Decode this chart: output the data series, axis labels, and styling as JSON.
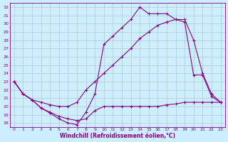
{
  "xlabel": "Windchill (Refroidissement éolien,°C)",
  "ylabel": "",
  "background_color": "#cceeff",
  "line_color": "#880088",
  "grid_color": "#aacccc",
  "xlim": [
    -0.5,
    23.5
  ],
  "ylim": [
    17.5,
    32.5
  ],
  "xticks": [
    0,
    1,
    2,
    3,
    4,
    5,
    6,
    7,
    8,
    9,
    10,
    11,
    12,
    13,
    14,
    15,
    16,
    17,
    18,
    19,
    20,
    21,
    22,
    23
  ],
  "yticks": [
    18,
    19,
    20,
    21,
    22,
    23,
    24,
    25,
    26,
    27,
    28,
    29,
    30,
    31,
    32
  ],
  "line1_x": [
    0,
    1,
    2,
    3,
    4,
    5,
    6,
    7,
    8,
    9,
    10,
    11,
    12,
    13,
    14,
    15,
    16,
    17,
    18,
    19,
    20,
    21,
    22,
    23
  ],
  "line1_y": [
    23.0,
    21.5,
    20.8,
    19.8,
    19.2,
    18.5,
    18.0,
    17.8,
    19.3,
    21.5,
    27.5,
    28.5,
    29.5,
    30.5,
    32.0,
    31.2,
    31.2,
    31.2,
    30.5,
    30.2,
    23.8,
    23.8,
    21.2,
    20.5
  ],
  "line2_x": [
    0,
    1,
    2,
    3,
    4,
    5,
    6,
    7,
    8,
    9,
    10,
    11,
    12,
    13,
    14,
    15,
    16,
    17,
    18,
    19,
    20,
    21,
    22,
    23
  ],
  "line2_y": [
    23.0,
    21.5,
    20.8,
    20.5,
    20.2,
    20.0,
    20.0,
    20.5,
    22.0,
    23.0,
    24.0,
    25.0,
    26.0,
    27.0,
    28.2,
    29.0,
    29.8,
    30.2,
    30.5,
    30.5,
    28.0,
    24.0,
    21.5,
    20.5
  ],
  "line3_x": [
    0,
    1,
    2,
    3,
    4,
    5,
    6,
    7,
    8,
    9,
    10,
    11,
    12,
    13,
    14,
    15,
    16,
    17,
    18,
    19,
    20,
    21,
    22,
    23
  ],
  "line3_y": [
    23.0,
    21.5,
    20.8,
    19.8,
    19.3,
    18.8,
    18.5,
    18.3,
    18.5,
    19.5,
    20.0,
    20.0,
    20.0,
    20.0,
    20.0,
    20.0,
    20.0,
    20.2,
    20.3,
    20.5,
    20.5,
    20.5,
    20.5,
    20.5
  ]
}
